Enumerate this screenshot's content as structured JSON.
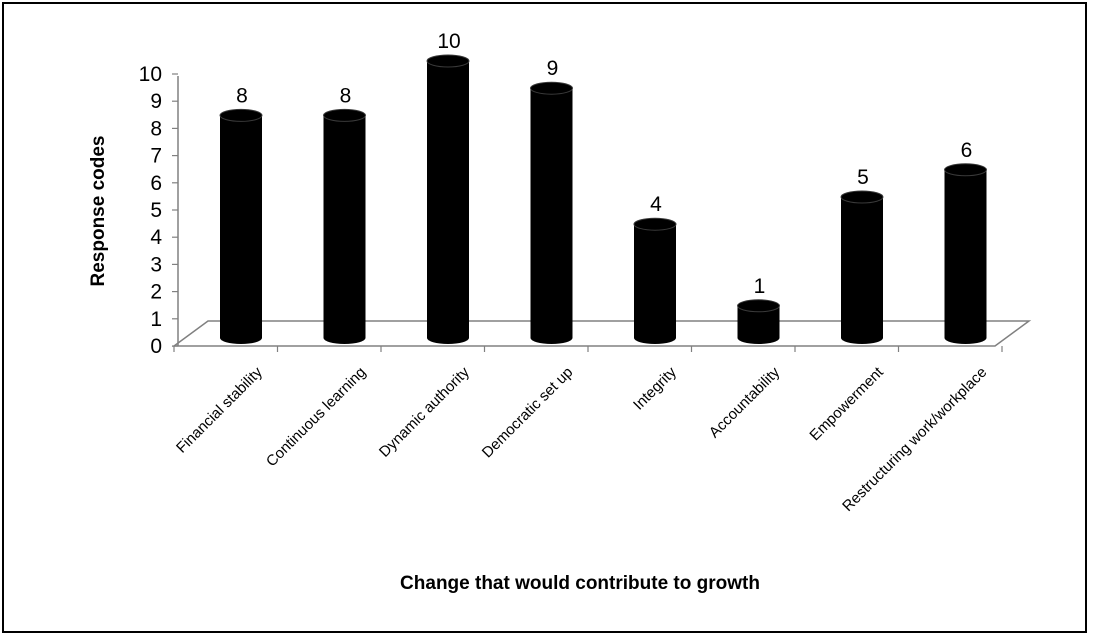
{
  "chart_data": {
    "type": "bar",
    "style": "3d-cylinder",
    "categories": [
      "Financial  stability",
      "Continuous  learning",
      "Dynamic   authority",
      "Democratic set up",
      "Integrity",
      "Accountability",
      "Empowerment",
      "Restructuring work/workplace"
    ],
    "values": [
      8,
      8,
      10,
      9,
      4,
      1,
      5,
      6
    ],
    "data_labels": [
      "8",
      "8",
      "10",
      "9",
      "4",
      "1",
      "5",
      "6"
    ],
    "y_ticks": [
      "0",
      "1",
      "2",
      "3",
      "4",
      "5",
      "6",
      "7",
      "8",
      "9",
      "10"
    ],
    "xlabel": "Change that would contribute to growth",
    "ylabel": "Response codes",
    "ylim": [
      0,
      10
    ],
    "grid": false,
    "legend": "none",
    "bar_color": "#000000"
  }
}
